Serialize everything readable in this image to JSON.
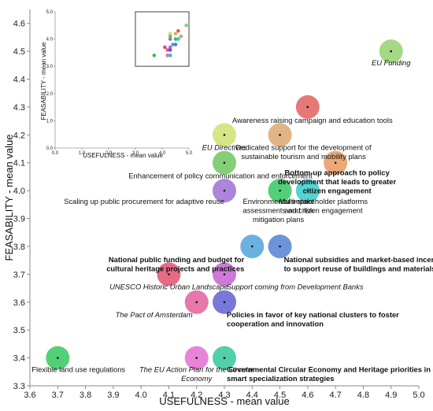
{
  "chart_data": [
    {
      "type": "scatter",
      "xlabel": "USEFULNESS - mean value",
      "ylabel": "FEASABILITY - mean value",
      "xlim": [
        3.6,
        5.0
      ],
      "ylim": [
        3.3,
        4.65
      ],
      "xticks": [
        "3.6",
        "3.7",
        "3.8",
        "3.9",
        "4.0",
        "4.1",
        "4.2",
        "4.3",
        "4.4",
        "4.5",
        "4.6",
        "4.7",
        "4.8",
        "4.9",
        "5.0"
      ],
      "yticks": [
        "3.3",
        "3.4",
        "3.5",
        "3.6",
        "3.7",
        "3.8",
        "3.9",
        "4.0",
        "4.1",
        "4.2",
        "4.3",
        "4.4",
        "4.5",
        "4.6"
      ],
      "grid": false,
      "points": [
        {
          "x": 4.9,
          "y": 4.5,
          "label": "EU Funding",
          "color": "#8fd16a",
          "style": "italic"
        },
        {
          "x": 4.6,
          "y": 4.3,
          "label": "Awareness raising campaign and education tools",
          "color": "#e05a5a",
          "style": "normal"
        },
        {
          "x": 4.3,
          "y": 4.2,
          "label": "EU Directives",
          "color": "#cce06a",
          "style": "italic"
        },
        {
          "x": 4.5,
          "y": 4.2,
          "label": "Dedicated support for the development of sustainable tourism and mobility plans",
          "color": "#dba36a",
          "style": "normal"
        },
        {
          "x": 4.7,
          "y": 4.1,
          "label": "Bottom-up approach to policy development that leads to greater citizen engagement",
          "color": "#e8965a",
          "style": "bold"
        },
        {
          "x": 4.3,
          "y": 4.1,
          "label": "Enhancement of policy communication and enforcement",
          "color": "#6ac35a",
          "style": "normal"
        },
        {
          "x": 4.3,
          "y": 4.0,
          "label": "Scaling up public procurement for adaptive reuse",
          "color": "#9a6ad4",
          "style": "normal"
        },
        {
          "x": 4.5,
          "y": 4.0,
          "label": "Environmental impact assessments and risk mitigation plans",
          "color": "#2dc45a",
          "style": "normal"
        },
        {
          "x": 4.6,
          "y": 4.0,
          "label": "Multi-stakeholder platforms and citizen engagement",
          "color": "#2ec9c9",
          "style": "normal"
        },
        {
          "x": 4.4,
          "y": 3.8,
          "label": "National public funding and budget for cultural heritage projects and practices",
          "color": "#4aa0d8",
          "style": "bold"
        },
        {
          "x": 4.5,
          "y": 3.8,
          "label": "National subsidies and market-based incentive to support reuse of buildings and materials",
          "color": "#4a7ed0",
          "style": "bold"
        },
        {
          "x": 4.1,
          "y": 3.7,
          "label": "UNESCO Historic Urban Landscape",
          "color": "#e24a6a",
          "style": "italic"
        },
        {
          "x": 4.3,
          "y": 3.7,
          "label": "Support coming from Development Banks",
          "color": "#c35ad0",
          "style": "italic"
        },
        {
          "x": 4.2,
          "y": 3.6,
          "label": "The Pact of Amsterdam",
          "color": "#e05a9a",
          "style": "italic"
        },
        {
          "x": 4.3,
          "y": 3.6,
          "label": "Policies in favor of key national clusters to foster cooperation and innovation",
          "color": "#5a5ad0",
          "style": "bold"
        },
        {
          "x": 3.7,
          "y": 3.4,
          "label": "Flexible land use regulations",
          "color": "#2dc45a",
          "style": "normal"
        },
        {
          "x": 4.2,
          "y": 3.4,
          "label": "The EU Action Plan for the Circular Economy",
          "color": "#e06ad0",
          "style": "italic"
        },
        {
          "x": 4.3,
          "y": 3.4,
          "label": "Governmental Circular Economy and Heritage priorities in developing smart specialization strategies",
          "color": "#2dc49a",
          "style": "bold"
        }
      ]
    },
    {
      "type": "scatter",
      "xlabel": "USEFULNESS - mean value",
      "ylabel": "FEASABILITY - mean value",
      "xlim": [
        0.0,
        5.0
      ],
      "ylim": [
        0.0,
        5.0
      ],
      "xticks": [
        "0.0",
        "1.0",
        "2.0",
        "3.0",
        "4.0",
        "5.0"
      ],
      "yticks": [
        "0.0",
        "1.0",
        "2.0",
        "3.0",
        "4.0",
        "5.0"
      ],
      "zoom_box": {
        "x": [
          3.0,
          5.0
        ],
        "y": [
          3.0,
          5.0
        ]
      }
    }
  ]
}
